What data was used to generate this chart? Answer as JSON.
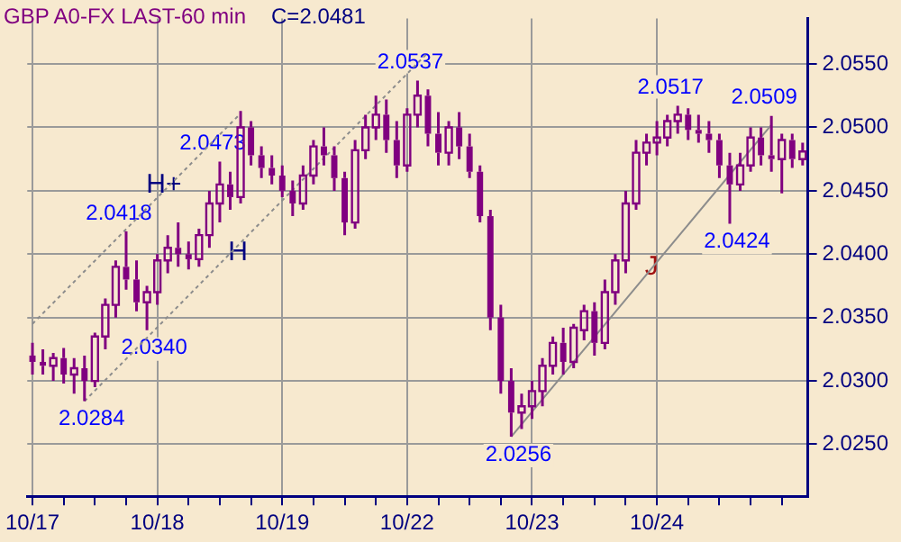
{
  "chart_data": {
    "type": "candlestick",
    "title": "GBP A0-FX LAST-60 min",
    "subtitle": "C=2.0481",
    "color": "#800080",
    "categories": [
      "10/17",
      null,
      null,
      null,
      null,
      null,
      null,
      null,
      null,
      null,
      null,
      null,
      "10/18",
      null,
      null,
      null,
      null,
      null,
      null,
      null,
      null,
      null,
      null,
      null,
      "10/19",
      null,
      null,
      null,
      null,
      null,
      null,
      null,
      null,
      null,
      null,
      null,
      "10/22",
      null,
      null,
      null,
      null,
      null,
      null,
      null,
      null,
      null,
      null,
      null,
      "10/23",
      null,
      null,
      null,
      null,
      null,
      null,
      null,
      null,
      null,
      null,
      null,
      "10/24",
      null,
      null,
      null,
      null,
      null,
      null,
      null,
      null,
      null,
      null,
      null,
      null,
      null,
      null
    ],
    "ohlc": [
      [
        2.032,
        2.033,
        2.0305,
        2.0315
      ],
      [
        2.0315,
        2.0325,
        2.0305,
        2.0312
      ],
      [
        2.0312,
        2.0322,
        2.03,
        2.0318
      ],
      [
        2.0318,
        2.0326,
        2.0298,
        2.0305
      ],
      [
        2.0305,
        2.0318,
        2.029,
        2.031
      ],
      [
        2.031,
        2.032,
        2.0284,
        2.03
      ],
      [
        2.03,
        2.0338,
        2.0295,
        2.0335
      ],
      [
        2.0335,
        2.0365,
        2.0325,
        2.036
      ],
      [
        2.036,
        2.0395,
        2.035,
        2.039
      ],
      [
        2.039,
        2.0418,
        2.0372,
        2.038
      ],
      [
        2.038,
        2.0395,
        2.0355,
        2.0362
      ],
      [
        2.0362,
        2.0375,
        2.034,
        2.037
      ],
      [
        2.037,
        2.04,
        2.036,
        2.0395
      ],
      [
        2.0395,
        2.0415,
        2.0385,
        2.0405
      ],
      [
        2.0405,
        2.0425,
        2.039,
        2.04
      ],
      [
        2.04,
        2.041,
        2.0388,
        2.0396
      ],
      [
        2.0396,
        2.042,
        2.039,
        2.0415
      ],
      [
        2.0415,
        2.045,
        2.0405,
        2.044
      ],
      [
        2.044,
        2.0473,
        2.0425,
        2.0455
      ],
      [
        2.0455,
        2.0465,
        2.0435,
        2.0445
      ],
      [
        2.0445,
        2.0513,
        2.044,
        2.05
      ],
      [
        2.05,
        2.0505,
        2.047,
        2.0478
      ],
      [
        2.0478,
        2.0485,
        2.046,
        2.0468
      ],
      [
        2.0468,
        2.0478,
        2.0455,
        2.0462
      ],
      [
        2.0462,
        2.047,
        2.0445,
        2.045
      ],
      [
        2.045,
        2.0458,
        2.043,
        2.044
      ],
      [
        2.044,
        2.047,
        2.0435,
        2.0462
      ],
      [
        2.0462,
        2.049,
        2.0455,
        2.0485
      ],
      [
        2.0485,
        2.05,
        2.047,
        2.0478
      ],
      [
        2.0478,
        2.0485,
        2.045,
        2.046
      ],
      [
        2.046,
        2.0465,
        2.0415,
        2.0425
      ],
      [
        2.0425,
        2.049,
        2.042,
        2.0482
      ],
      [
        2.0482,
        2.051,
        2.0475,
        2.05
      ],
      [
        2.05,
        2.0525,
        2.049,
        2.051
      ],
      [
        2.051,
        2.0522,
        2.048,
        2.049
      ],
      [
        2.049,
        2.0505,
        2.046,
        2.047
      ],
      [
        2.047,
        2.0515,
        2.0465,
        2.051
      ],
      [
        2.051,
        2.0537,
        2.05,
        2.0525
      ],
      [
        2.0525,
        2.053,
        2.0485,
        2.0495
      ],
      [
        2.0495,
        2.0512,
        2.047,
        2.048
      ],
      [
        2.048,
        2.0505,
        2.047,
        2.05
      ],
      [
        2.05,
        2.0512,
        2.0475,
        2.0485
      ],
      [
        2.0485,
        2.0495,
        2.046,
        2.0465
      ],
      [
        2.0465,
        2.047,
        2.0425,
        2.043
      ],
      [
        2.043,
        2.0435,
        2.034,
        2.035
      ],
      [
        2.035,
        2.036,
        2.029,
        2.03
      ],
      [
        2.03,
        2.031,
        2.0256,
        2.0275
      ],
      [
        2.0275,
        2.029,
        2.0262,
        2.028
      ],
      [
        2.028,
        2.03,
        2.027,
        2.0292
      ],
      [
        2.0292,
        2.0318,
        2.028,
        2.0312
      ],
      [
        2.0312,
        2.0335,
        2.0305,
        2.033
      ],
      [
        2.033,
        2.0342,
        2.0305,
        2.0315
      ],
      [
        2.0315,
        2.0345,
        2.031,
        2.0342
      ],
      [
        2.034,
        2.036,
        2.0332,
        2.0355
      ],
      [
        2.0355,
        2.0362,
        2.032,
        2.033
      ],
      [
        2.033,
        2.038,
        2.0325,
        2.037
      ],
      [
        2.037,
        2.04,
        2.036,
        2.0395
      ],
      [
        2.0395,
        2.045,
        2.0385,
        2.044
      ],
      [
        2.044,
        2.049,
        2.0435,
        2.048
      ],
      [
        2.048,
        2.0495,
        2.047,
        2.0488
      ],
      [
        2.0488,
        2.0505,
        2.0478,
        2.0492
      ],
      [
        2.0492,
        2.051,
        2.0485,
        2.0505
      ],
      [
        2.0505,
        2.0517,
        2.0495,
        2.051
      ],
      [
        2.051,
        2.0515,
        2.049,
        2.0498
      ],
      [
        2.0498,
        2.051,
        2.0488,
        2.0495
      ],
      [
        2.0495,
        2.0505,
        2.048,
        2.049
      ],
      [
        2.049,
        2.0495,
        2.046,
        2.047
      ],
      [
        2.047,
        2.048,
        2.0424,
        2.0455
      ],
      [
        2.0455,
        2.048,
        2.045,
        2.047
      ],
      [
        2.047,
        2.05,
        2.0465,
        2.0492
      ],
      [
        2.0492,
        2.05,
        2.047,
        2.0478
      ],
      [
        2.0478,
        2.0509,
        2.0465,
        2.0475
      ],
      [
        2.0475,
        2.0495,
        2.0448,
        2.049
      ],
      [
        2.049,
        2.0495,
        2.0468,
        2.0475
      ],
      [
        2.0475,
        2.0488,
        2.047,
        2.0481
      ]
    ],
    "series": [
      {
        "type": "line",
        "color": "#8c8c8c",
        "line_style": "dashed",
        "values": [
          2.0345,
          null,
          null,
          null,
          null,
          null,
          null,
          null,
          null,
          null,
          null,
          null,
          null,
          null,
          null,
          null,
          null,
          null,
          null,
          null,
          2.0511,
          null,
          null,
          null,
          null,
          null,
          null,
          null,
          null,
          null,
          null,
          null,
          null,
          null,
          null,
          null,
          null,
          null,
          null,
          null,
          null,
          null,
          null,
          null,
          null,
          null,
          null,
          null,
          null,
          null,
          null,
          null,
          null,
          null,
          null,
          null,
          null,
          null,
          null,
          null,
          null,
          null,
          null,
          null,
          null,
          null,
          null,
          null,
          null,
          null,
          null,
          null,
          null,
          null,
          null
        ]
      },
      {
        "type": "line",
        "color": "#8c8c8c",
        "line_style": "dashed",
        "values": [
          null,
          null,
          null,
          null,
          null,
          2.0284,
          null,
          null,
          null,
          null,
          null,
          null,
          null,
          null,
          null,
          null,
          null,
          null,
          null,
          null,
          null,
          null,
          null,
          null,
          null,
          null,
          null,
          null,
          null,
          null,
          null,
          null,
          null,
          null,
          null,
          null,
          null,
          null,
          2.0559,
          null,
          null,
          null,
          null,
          null,
          null,
          null,
          null,
          null,
          null,
          null,
          null,
          null,
          null,
          null,
          null,
          null,
          null,
          null,
          null,
          null,
          null,
          null,
          null,
          null,
          null,
          null,
          null,
          null,
          null,
          null,
          null,
          null,
          null,
          null,
          null
        ]
      },
      {
        "type": "line",
        "color": "#8c8c8c",
        "line_style": "solid",
        "values": [
          null,
          null,
          null,
          null,
          null,
          null,
          null,
          null,
          null,
          null,
          null,
          null,
          null,
          null,
          null,
          null,
          null,
          null,
          null,
          null,
          null,
          null,
          null,
          null,
          null,
          null,
          null,
          null,
          null,
          null,
          null,
          null,
          null,
          null,
          null,
          null,
          null,
          null,
          null,
          null,
          null,
          null,
          null,
          null,
          null,
          null,
          2.0256,
          null,
          null,
          null,
          null,
          null,
          null,
          null,
          null,
          null,
          null,
          null,
          null,
          null,
          null,
          null,
          null,
          null,
          null,
          null,
          null,
          null,
          null,
          null,
          null,
          2.0502,
          null,
          null,
          null
        ]
      }
    ],
    "ylim": [
      2.0209,
      2.0586
    ],
    "yticks": [
      {
        "value": 2.025,
        "label": "2.0250"
      },
      {
        "value": 2.03,
        "label": "2.0300"
      },
      {
        "value": 2.035,
        "label": "2.0350"
      },
      {
        "value": 2.04,
        "label": "2.0400"
      },
      {
        "value": 2.045,
        "label": "2.0450"
      },
      {
        "value": 2.05,
        "label": "2.0500"
      },
      {
        "value": 2.055,
        "label": "2.0550"
      }
    ],
    "grid": true,
    "annotations": [
      {
        "text": "2.0284",
        "y": 2.0284
      },
      {
        "text": "2.0418",
        "y": 2.0418
      },
      {
        "text": "2.0340",
        "y": 2.034
      },
      {
        "text": "2.0473",
        "y": 2.0473
      },
      {
        "text": "2.0537",
        "y": 2.0537
      },
      {
        "text": "2.0256",
        "y": 2.0256
      },
      {
        "text": "2.0517",
        "y": 2.0517
      },
      {
        "text": "2.0424",
        "y": 2.0424
      },
      {
        "text": "2.0509",
        "y": 2.0509
      },
      "H+",
      "H",
      "J"
    ]
  }
}
